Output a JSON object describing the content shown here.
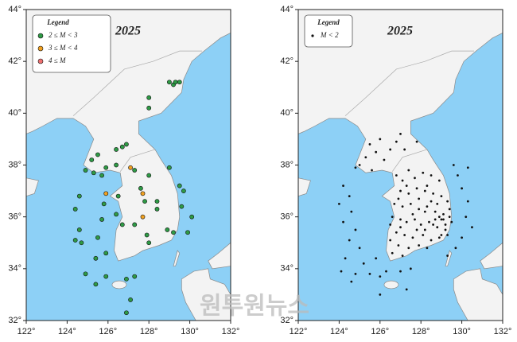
{
  "chart_data": [
    {
      "type": "scatter",
      "title": "2025",
      "legend_title": "Legend",
      "xlim": [
        122,
        132
      ],
      "ylim": [
        32,
        44
      ],
      "xticks": [
        {
          "value": 122,
          "label": "122°"
        },
        {
          "value": 124,
          "label": "124°"
        },
        {
          "value": 126,
          "label": "126°"
        },
        {
          "value": 128,
          "label": "128°"
        },
        {
          "value": 130,
          "label": "130°"
        },
        {
          "value": 132,
          "label": "132°"
        }
      ],
      "yticks": [
        {
          "value": 32,
          "label": "32°"
        },
        {
          "value": 34,
          "label": "34°"
        },
        {
          "value": 36,
          "label": "36°"
        },
        {
          "value": 38,
          "label": "38°"
        },
        {
          "value": 40,
          "label": "40°"
        },
        {
          "value": 42,
          "label": "42°"
        },
        {
          "value": 44,
          "label": "44°"
        }
      ],
      "series": [
        {
          "name": "2 ≤ M < 3",
          "color": "#2e9a45",
          "x": [
            129.0,
            129.2,
            129.3,
            129.5,
            128.0,
            128.0,
            126.9,
            126.7,
            126.4,
            125.5,
            125.2,
            124.9,
            125.3,
            125.7,
            125.9,
            126.4,
            127.3,
            127.6,
            128.0,
            129.0,
            129.5,
            129.6,
            129.2,
            129.9,
            130.1,
            129.7,
            128.4,
            127.8,
            126.5,
            125.8,
            125.7,
            126.4,
            126.7,
            127.3,
            127.9,
            128.0,
            128.4,
            124.6,
            124.4,
            124.6,
            124.7,
            125.5,
            125.4,
            125.9,
            124.9,
            125.4,
            125.9,
            126.9,
            127.3,
            127.1,
            126.9,
            124.4,
            128.9
          ],
          "values": [
            41.2,
            41.1,
            41.2,
            41.2,
            40.6,
            40.2,
            38.8,
            38.7,
            38.6,
            38.4,
            38.2,
            37.8,
            37.7,
            37.6,
            37.9,
            38.0,
            37.8,
            37.1,
            37.6,
            37.9,
            37.2,
            36.4,
            35.4,
            35.4,
            36.0,
            37.0,
            36.6,
            36.6,
            36.8,
            36.5,
            35.9,
            36.1,
            35.7,
            35.7,
            35.3,
            35.0,
            36.3,
            36.8,
            36.3,
            35.5,
            35.0,
            35.2,
            34.4,
            34.6,
            33.8,
            33.4,
            33.7,
            33.6,
            33.7,
            32.8,
            32.3,
            35.1,
            35.5
          ]
        },
        {
          "name": "3 ≤ M < 4",
          "color": "#f0a020",
          "x": [
            127.1,
            125.9,
            127.7,
            127.7
          ],
          "values": [
            37.9,
            36.9,
            36.9,
            36.0
          ]
        },
        {
          "name": "4 ≤ M",
          "color": "#f07070",
          "x": [],
          "values": []
        }
      ]
    },
    {
      "type": "scatter",
      "title": "2025",
      "legend_title": "Legend",
      "xlim": [
        122,
        132
      ],
      "ylim": [
        32,
        44
      ],
      "xticks": [
        {
          "value": 122,
          "label": "122°"
        },
        {
          "value": 124,
          "label": "124°"
        },
        {
          "value": 126,
          "label": "126°"
        },
        {
          "value": 128,
          "label": "128°"
        },
        {
          "value": 130,
          "label": "130°"
        },
        {
          "value": 132,
          "label": "132°"
        }
      ],
      "yticks": [
        {
          "value": 32,
          "label": "32°"
        },
        {
          "value": 34,
          "label": "34°"
        },
        {
          "value": 36,
          "label": "36°"
        },
        {
          "value": 38,
          "label": "38°"
        },
        {
          "value": 40,
          "label": "40°"
        },
        {
          "value": 42,
          "label": "42°"
        },
        {
          "value": 44,
          "label": "44°"
        }
      ],
      "series": [
        {
          "name": "M < 2",
          "color": "#111111",
          "x": [
            127.0,
            126.8,
            126.5,
            125.8,
            125.3,
            125.0,
            124.8,
            125.6,
            126.2,
            127.2,
            127.8,
            126.0,
            125.5,
            124.2,
            124.5,
            124.0,
            124.6,
            124.2,
            124.8,
            124.5,
            125.0,
            124.3,
            125.2,
            124.8,
            125.5,
            126.0,
            126.3,
            127.0,
            127.5,
            125.8,
            124.1,
            124.6,
            127.3,
            126.0,
            129.8,
            130.0,
            130.3,
            130.2,
            130.5,
            130.0,
            129.7,
            129.3,
            130.3,
            129.6,
            126.8,
            127.1,
            127.4,
            127.7,
            128.1,
            128.5,
            128.9,
            127.0,
            127.4,
            127.8,
            128.2,
            128.6,
            129.0,
            129.3,
            126.7,
            127.1,
            127.5,
            127.9,
            128.3,
            128.7,
            129.1,
            129.4,
            126.6,
            127.0,
            127.3,
            127.7,
            128.0,
            128.4,
            128.8,
            129.2,
            129.3,
            128.9,
            128.5,
            128.1,
            127.6,
            127.2,
            126.8,
            126.5,
            126.9,
            127.4,
            127.9,
            128.3,
            126.6,
            127.1,
            128.7,
            129.0,
            128.9,
            129.2,
            129.1,
            128.6,
            128.2,
            127.6,
            126.9,
            127.3,
            128.3,
            128.8,
            127.9,
            128.5,
            129.4,
            129.5,
            127.8,
            128.2,
            127.0,
            126.5,
            129.0
          ],
          "values": [
            39.2,
            38.9,
            38.6,
            38.5,
            38.3,
            38.0,
            37.9,
            37.8,
            38.2,
            38.6,
            38.9,
            39.0,
            38.8,
            37.2,
            36.8,
            36.5,
            36.2,
            35.8,
            35.5,
            35.1,
            34.8,
            34.4,
            34.2,
            33.8,
            33.8,
            33.7,
            33.9,
            33.9,
            34.0,
            34.4,
            33.9,
            33.5,
            33.2,
            33.0,
            37.6,
            37.1,
            36.6,
            36.0,
            35.6,
            35.2,
            34.8,
            34.5,
            37.9,
            38.0,
            37.6,
            37.4,
            37.8,
            37.5,
            37.7,
            37.6,
            37.4,
            37.0,
            36.9,
            37.1,
            37.0,
            36.9,
            36.8,
            36.6,
            36.5,
            36.4,
            36.5,
            36.3,
            36.4,
            36.2,
            36.1,
            36.0,
            36.0,
            35.9,
            35.8,
            35.9,
            35.7,
            35.8,
            35.6,
            35.7,
            35.3,
            35.2,
            35.1,
            35.3,
            35.2,
            35.3,
            35.4,
            35.1,
            34.9,
            34.8,
            34.9,
            34.8,
            34.6,
            34.5,
            35.9,
            35.9,
            36.0,
            35.5,
            35.9,
            35.7,
            36.2,
            36.1,
            36.7,
            37.2,
            37.2,
            36.5,
            36.7,
            36.6,
            36.3,
            35.8,
            35.5,
            35.5,
            35.6,
            35.7,
            35.3
          ]
        }
      ]
    }
  ],
  "watermark": "원투원뉴스"
}
